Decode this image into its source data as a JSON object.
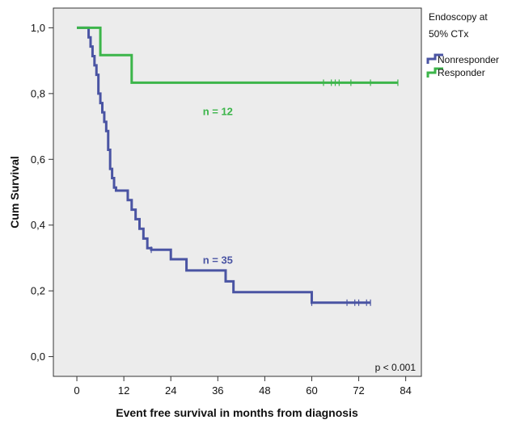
{
  "chart_data": {
    "type": "line",
    "step": true,
    "xlabel": "Event free survival in months from diagnosis",
    "ylabel": "Cum Survival",
    "xlim": [
      -6,
      88
    ],
    "ylim": [
      -0.06,
      1.06
    ],
    "xticks": [
      0,
      12,
      24,
      36,
      48,
      60,
      72,
      84
    ],
    "yticks": [
      0.0,
      0.2,
      0.4,
      0.6,
      0.8,
      1.0
    ],
    "ytick_labels": [
      "0,0",
      "0,2",
      "0,4",
      "0,6",
      "0,8",
      "1,0"
    ],
    "grid": false,
    "plot_background": "#ececec",
    "legend": {
      "title_lines": [
        "Endoscopy at",
        "50% CTx"
      ],
      "placement": "right"
    },
    "series": [
      {
        "name": "Nonresponder",
        "color": "#4a54a3",
        "x": [
          0,
          3,
          3.5,
          4,
          4.5,
          5,
          5.5,
          6,
          6.5,
          7,
          7.5,
          8,
          8.5,
          9,
          9.5,
          10,
          13,
          14,
          15,
          16,
          17,
          18,
          19,
          24,
          28,
          38,
          40,
          60,
          75
        ],
        "y": [
          1.0,
          0.971,
          0.943,
          0.914,
          0.886,
          0.857,
          0.8,
          0.771,
          0.743,
          0.714,
          0.686,
          0.629,
          0.571,
          0.543,
          0.514,
          0.505,
          0.476,
          0.447,
          0.418,
          0.389,
          0.359,
          0.33,
          0.325,
          0.296,
          0.262,
          0.229,
          0.196,
          0.164,
          0.164
        ],
        "censored_x": [
          19,
          60,
          69,
          71,
          72,
          74,
          75
        ],
        "annotation": "n = 35"
      },
      {
        "name": "Responder",
        "color": "#3cb54a",
        "x": [
          0,
          6,
          14,
          82
        ],
        "y": [
          1.0,
          0.917,
          0.833,
          0.833
        ],
        "censored_x": [
          63,
          65,
          66,
          67,
          70,
          75,
          82
        ],
        "annotation": "n = 12"
      }
    ],
    "annotations": [
      "p < 0.001"
    ]
  }
}
